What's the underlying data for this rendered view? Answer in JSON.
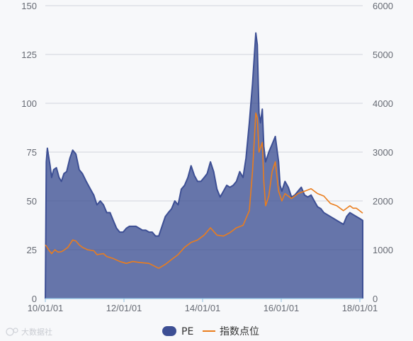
{
  "chart_data": {
    "type": "area",
    "x_ticks": [
      "10/01/01",
      "12/01/01",
      "14/01/01",
      "16/01/01",
      "18/01/01"
    ],
    "y_left": {
      "min": 0,
      "max": 150,
      "ticks": [
        "0",
        "25",
        "50",
        "75",
        "100",
        "125",
        "150"
      ]
    },
    "y_right": {
      "min": 0,
      "max": 6000,
      "ticks": [
        "0",
        "1000",
        "2000",
        "3000",
        "4000",
        "5000",
        "6000"
      ]
    },
    "x_range": [
      "2010-01-01",
      "2018-03-01"
    ],
    "grid": true,
    "legend_position": "bottom-center",
    "series": [
      {
        "name": "PE",
        "axis": "left",
        "kind": "area",
        "color": "#3d4f94",
        "points": [
          [
            "2010-01-01",
            0
          ],
          [
            "2010-01-10",
            70
          ],
          [
            "2010-01-20",
            77
          ],
          [
            "2010-02-15",
            68
          ],
          [
            "2010-03-01",
            62
          ],
          [
            "2010-03-20",
            66
          ],
          [
            "2010-04-15",
            67
          ],
          [
            "2010-05-10",
            62
          ],
          [
            "2010-06-01",
            60
          ],
          [
            "2010-06-25",
            64
          ],
          [
            "2010-07-20",
            65
          ],
          [
            "2010-08-20",
            72
          ],
          [
            "2010-09-15",
            76
          ],
          [
            "2010-10-15",
            74
          ],
          [
            "2010-11-15",
            66
          ],
          [
            "2010-12-15",
            64
          ],
          [
            "2011-01-20",
            60
          ],
          [
            "2011-03-01",
            56
          ],
          [
            "2011-04-01",
            53
          ],
          [
            "2011-05-01",
            48
          ],
          [
            "2011-06-01",
            50
          ],
          [
            "2011-07-01",
            48
          ],
          [
            "2011-08-01",
            44
          ],
          [
            "2011-09-01",
            44
          ],
          [
            "2011-10-01",
            40
          ],
          [
            "2011-11-01",
            36
          ],
          [
            "2011-12-01",
            34
          ],
          [
            "2012-01-01",
            34
          ],
          [
            "2012-02-01",
            36
          ],
          [
            "2012-03-01",
            37
          ],
          [
            "2012-05-01",
            37
          ],
          [
            "2012-06-01",
            36
          ],
          [
            "2012-07-01",
            35
          ],
          [
            "2012-08-01",
            35
          ],
          [
            "2012-09-01",
            34
          ],
          [
            "2012-10-01",
            34
          ],
          [
            "2012-11-01",
            32
          ],
          [
            "2012-12-01",
            32
          ],
          [
            "2013-01-01",
            37
          ],
          [
            "2013-02-01",
            42
          ],
          [
            "2013-03-01",
            44
          ],
          [
            "2013-04-01",
            46
          ],
          [
            "2013-05-01",
            50
          ],
          [
            "2013-06-01",
            48
          ],
          [
            "2013-07-01",
            56
          ],
          [
            "2013-08-01",
            58
          ],
          [
            "2013-09-01",
            62
          ],
          [
            "2013-10-01",
            68
          ],
          [
            "2013-11-01",
            63
          ],
          [
            "2013-12-01",
            60
          ],
          [
            "2014-01-01",
            60
          ],
          [
            "2014-02-01",
            62
          ],
          [
            "2014-03-01",
            64
          ],
          [
            "2014-04-01",
            70
          ],
          [
            "2014-05-01",
            65
          ],
          [
            "2014-06-01",
            56
          ],
          [
            "2014-07-01",
            52
          ],
          [
            "2014-08-01",
            55
          ],
          [
            "2014-09-01",
            58
          ],
          [
            "2014-10-01",
            57
          ],
          [
            "2014-11-01",
            58
          ],
          [
            "2014-12-01",
            60
          ],
          [
            "2015-01-01",
            65
          ],
          [
            "2015-02-01",
            62
          ],
          [
            "2015-03-01",
            72
          ],
          [
            "2015-04-01",
            90
          ],
          [
            "2015-05-01",
            110
          ],
          [
            "2015-06-01",
            136
          ],
          [
            "2015-06-15",
            130
          ],
          [
            "2015-07-01",
            95
          ],
          [
            "2015-07-15",
            90
          ],
          [
            "2015-08-01",
            97
          ],
          [
            "2015-08-15",
            78
          ],
          [
            "2015-09-01",
            70
          ],
          [
            "2015-10-01",
            75
          ],
          [
            "2015-11-01",
            79
          ],
          [
            "2015-12-01",
            83
          ],
          [
            "2016-01-01",
            70
          ],
          [
            "2016-01-15",
            58
          ],
          [
            "2016-02-01",
            55
          ],
          [
            "2016-03-01",
            60
          ],
          [
            "2016-04-01",
            57
          ],
          [
            "2016-05-01",
            52
          ],
          [
            "2016-06-01",
            53
          ],
          [
            "2016-07-01",
            55
          ],
          [
            "2016-08-01",
            57
          ],
          [
            "2016-09-01",
            53
          ],
          [
            "2016-10-01",
            52
          ],
          [
            "2016-11-01",
            53
          ],
          [
            "2016-12-01",
            50
          ],
          [
            "2017-01-01",
            47
          ],
          [
            "2017-02-01",
            46
          ],
          [
            "2017-03-01",
            44
          ],
          [
            "2017-04-01",
            43
          ],
          [
            "2017-05-01",
            42
          ],
          [
            "2017-06-01",
            41
          ],
          [
            "2017-07-01",
            40
          ],
          [
            "2017-08-01",
            39
          ],
          [
            "2017-09-01",
            38
          ],
          [
            "2017-10-01",
            42
          ],
          [
            "2017-11-01",
            44
          ],
          [
            "2017-12-01",
            43
          ],
          [
            "2018-01-01",
            42
          ],
          [
            "2018-02-01",
            41
          ],
          [
            "2018-03-01",
            40
          ],
          [
            "2018-03-01",
            0
          ]
        ]
      },
      {
        "name": "指数点位",
        "axis": "right",
        "kind": "line",
        "color": "#ea7d1d",
        "points": [
          [
            "2010-01-01",
            1100
          ],
          [
            "2010-02-01",
            1000
          ],
          [
            "2010-03-01",
            920
          ],
          [
            "2010-04-01",
            1000
          ],
          [
            "2010-05-01",
            950
          ],
          [
            "2010-06-01",
            960
          ],
          [
            "2010-07-01",
            1000
          ],
          [
            "2010-08-01",
            1050
          ],
          [
            "2010-09-15",
            1200
          ],
          [
            "2010-10-15",
            1180
          ],
          [
            "2010-11-15",
            1100
          ],
          [
            "2010-12-15",
            1050
          ],
          [
            "2011-02-01",
            1000
          ],
          [
            "2011-04-01",
            980
          ],
          [
            "2011-05-01",
            900
          ],
          [
            "2011-07-01",
            920
          ],
          [
            "2011-08-01",
            860
          ],
          [
            "2011-10-01",
            820
          ],
          [
            "2011-12-01",
            760
          ],
          [
            "2012-02-01",
            720
          ],
          [
            "2012-04-01",
            760
          ],
          [
            "2012-06-01",
            740
          ],
          [
            "2012-09-01",
            720
          ],
          [
            "2012-12-01",
            620
          ],
          [
            "2013-02-01",
            700
          ],
          [
            "2013-04-01",
            800
          ],
          [
            "2013-06-01",
            900
          ],
          [
            "2013-08-01",
            1050
          ],
          [
            "2013-10-01",
            1150
          ],
          [
            "2013-12-01",
            1200
          ],
          [
            "2014-02-01",
            1300
          ],
          [
            "2014-04-01",
            1450
          ],
          [
            "2014-06-01",
            1300
          ],
          [
            "2014-08-01",
            1280
          ],
          [
            "2014-10-01",
            1350
          ],
          [
            "2014-12-01",
            1450
          ],
          [
            "2015-02-01",
            1500
          ],
          [
            "2015-04-01",
            1800
          ],
          [
            "2015-05-01",
            2600
          ],
          [
            "2015-06-01",
            3800
          ],
          [
            "2015-06-15",
            3700
          ],
          [
            "2015-07-01",
            3000
          ],
          [
            "2015-08-01",
            3200
          ],
          [
            "2015-08-15",
            2400
          ],
          [
            "2015-09-01",
            1900
          ],
          [
            "2015-10-01",
            2100
          ],
          [
            "2015-11-01",
            2600
          ],
          [
            "2015-12-01",
            2800
          ],
          [
            "2016-01-01",
            2200
          ],
          [
            "2016-02-01",
            2000
          ],
          [
            "2016-03-01",
            2150
          ],
          [
            "2016-05-01",
            2050
          ],
          [
            "2016-07-01",
            2150
          ],
          [
            "2016-09-01",
            2200
          ],
          [
            "2016-11-01",
            2250
          ],
          [
            "2017-01-01",
            2150
          ],
          [
            "2017-03-01",
            2100
          ],
          [
            "2017-05-01",
            1950
          ],
          [
            "2017-07-01",
            1900
          ],
          [
            "2017-09-01",
            1800
          ],
          [
            "2017-10-01",
            1850
          ],
          [
            "2017-11-01",
            1900
          ],
          [
            "2017-12-01",
            1850
          ],
          [
            "2018-01-01",
            1850
          ],
          [
            "2018-03-01",
            1750
          ]
        ]
      }
    ]
  },
  "legend": {
    "items": [
      {
        "label": "PE",
        "color": "#3d4f94",
        "symbol": "swatch"
      },
      {
        "label": "指数点位",
        "color": "#ea7d1d",
        "symbol": "line"
      }
    ]
  },
  "watermark": {
    "text": "大数据社"
  }
}
